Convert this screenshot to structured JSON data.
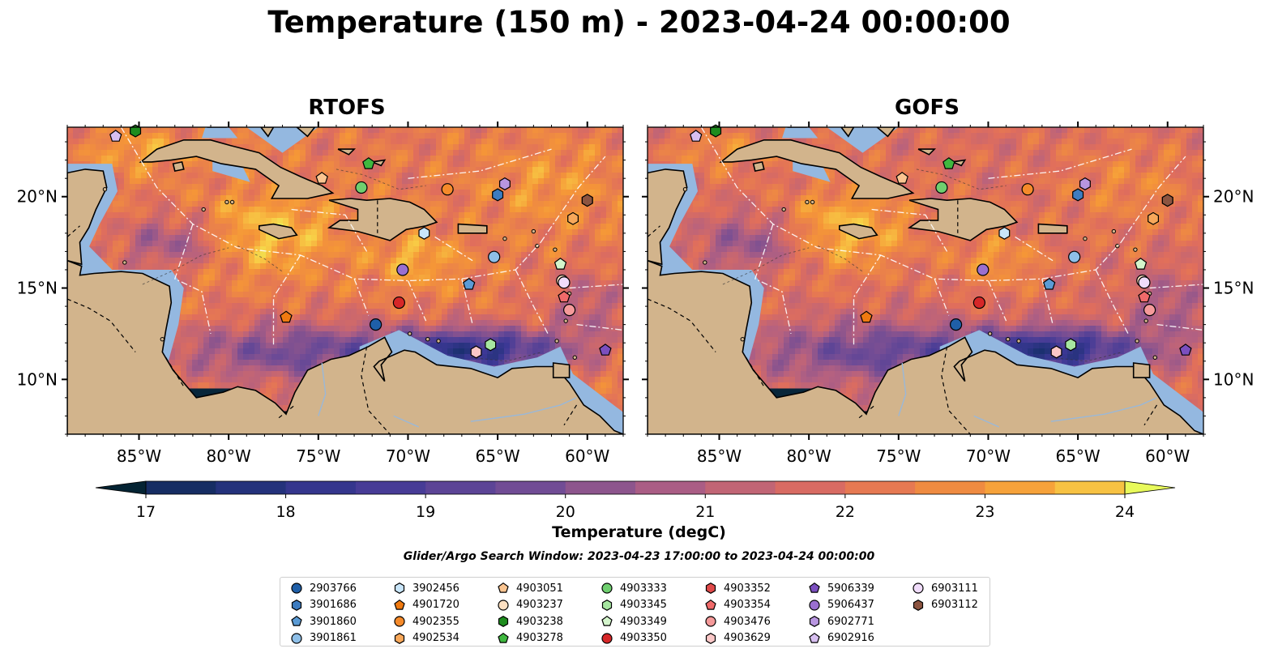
{
  "title": "Temperature (150 m) - 2023-04-24 00:00:00",
  "panels": [
    {
      "title": "RTOFS",
      "tint": 0
    },
    {
      "title": "GOFS",
      "tint": 1
    }
  ],
  "lon_ticks": [
    "85°W",
    "80°W",
    "75°W",
    "70°W",
    "65°W",
    "60°W"
  ],
  "lat_ticks": [
    "20°N",
    "15°N",
    "10°N"
  ],
  "colorbar": {
    "label": "Temperature (degC)",
    "ticks": [
      "17",
      "18",
      "19",
      "20",
      "21",
      "22",
      "23",
      "24"
    ],
    "vmin": 16.5,
    "vmax": 24.5,
    "step": 0.5,
    "colormap": "thermal"
  },
  "search_window": "Glider/Argo Search Window: 2023-04-23 17:00:00 to 2023-04-24 00:00:00",
  "legend": [
    {
      "id": "2903766",
      "marker": "circle",
      "color": "#1f5fa8"
    },
    {
      "id": "3901686",
      "marker": "hexagon",
      "color": "#3d7cc0"
    },
    {
      "id": "3901860",
      "marker": "pentagon",
      "color": "#5b9bd5"
    },
    {
      "id": "3901861",
      "marker": "circle",
      "color": "#8ebfe8"
    },
    {
      "id": "3902456",
      "marker": "hexagon",
      "color": "#c9e6fa"
    },
    {
      "id": "4901720",
      "marker": "pentagon",
      "color": "#f07a10"
    },
    {
      "id": "4902355",
      "marker": "circle",
      "color": "#f58a2a"
    },
    {
      "id": "4902534",
      "marker": "hexagon",
      "color": "#f8a85a"
    },
    {
      "id": "4903051",
      "marker": "pentagon",
      "color": "#fbc591"
    },
    {
      "id": "4903237",
      "marker": "circle",
      "color": "#fde0c2"
    },
    {
      "id": "4903238",
      "marker": "hexagon",
      "color": "#1e8c1e"
    },
    {
      "id": "4903278",
      "marker": "pentagon",
      "color": "#3fb83f"
    },
    {
      "id": "4903333",
      "marker": "circle",
      "color": "#6fcf6f"
    },
    {
      "id": "4903345",
      "marker": "hexagon",
      "color": "#a6e6a0"
    },
    {
      "id": "4903349",
      "marker": "pentagon",
      "color": "#d4f5cc"
    },
    {
      "id": "4903350",
      "marker": "circle",
      "color": "#d62728"
    },
    {
      "id": "4903352",
      "marker": "hexagon",
      "color": "#e04a4a"
    },
    {
      "id": "4903354",
      "marker": "pentagon",
      "color": "#f06a6a"
    },
    {
      "id": "4903476",
      "marker": "circle",
      "color": "#f59a9a"
    },
    {
      "id": "4903629",
      "marker": "hexagon",
      "color": "#fbc8c8"
    },
    {
      "id": "5906339",
      "marker": "pentagon",
      "color": "#7b4fbf"
    },
    {
      "id": "5906437",
      "marker": "circle",
      "color": "#9a6fd0"
    },
    {
      "id": "6902771",
      "marker": "hexagon",
      "color": "#b896e0"
    },
    {
      "id": "6902916",
      "marker": "pentagon",
      "color": "#d7bff0"
    },
    {
      "id": "6903111",
      "marker": "circle",
      "color": "#f0dcfa"
    },
    {
      "id": "6903112",
      "marker": "hexagon",
      "color": "#8c5440"
    }
  ],
  "floats": [
    {
      "id": "2903766",
      "lon": -71.8,
      "lat": 13.0
    },
    {
      "id": "3901686",
      "lon": -65.0,
      "lat": 20.1
    },
    {
      "id": "3901860",
      "lon": -66.6,
      "lat": 15.2
    },
    {
      "id": "3901861",
      "lon": -65.2,
      "lat": 16.7
    },
    {
      "id": "3902456",
      "lon": -69.1,
      "lat": 18.0
    },
    {
      "id": "4901720",
      "lon": -76.8,
      "lat": 13.4
    },
    {
      "id": "4902355",
      "lon": -67.8,
      "lat": 20.4
    },
    {
      "id": "4902534",
      "lon": -60.8,
      "lat": 18.8
    },
    {
      "id": "4903051",
      "lon": -74.8,
      "lat": 21.0
    },
    {
      "id": "4903237",
      "lon": -61.4,
      "lat": 15.4
    },
    {
      "id": "4903238",
      "lon": -85.2,
      "lat": 23.6
    },
    {
      "id": "4903278",
      "lon": -72.2,
      "lat": 21.8
    },
    {
      "id": "4903333",
      "lon": -72.6,
      "lat": 20.5
    },
    {
      "id": "4903345",
      "lon": -65.4,
      "lat": 11.9
    },
    {
      "id": "4903349",
      "lon": -61.5,
      "lat": 16.3
    },
    {
      "id": "4903350",
      "lon": -70.5,
      "lat": 14.2
    },
    {
      "id": "4903352",
      "lon": -60.0,
      "lat": 19.8
    },
    {
      "id": "4903354",
      "lon": -61.3,
      "lat": 14.5
    },
    {
      "id": "4903476",
      "lon": -61.0,
      "lat": 13.8
    },
    {
      "id": "4903629",
      "lon": -66.2,
      "lat": 11.5
    },
    {
      "id": "5906339",
      "lon": -59.0,
      "lat": 11.6
    },
    {
      "id": "5906437",
      "lon": -70.3,
      "lat": 16.0
    },
    {
      "id": "6902771",
      "lon": -64.6,
      "lat": 20.7
    },
    {
      "id": "6902916",
      "lon": -86.3,
      "lat": 23.3
    },
    {
      "id": "6903111",
      "lon": -61.3,
      "lat": 15.3
    },
    {
      "id": "6903112",
      "lon": -60.0,
      "lat": 19.8
    }
  ]
}
